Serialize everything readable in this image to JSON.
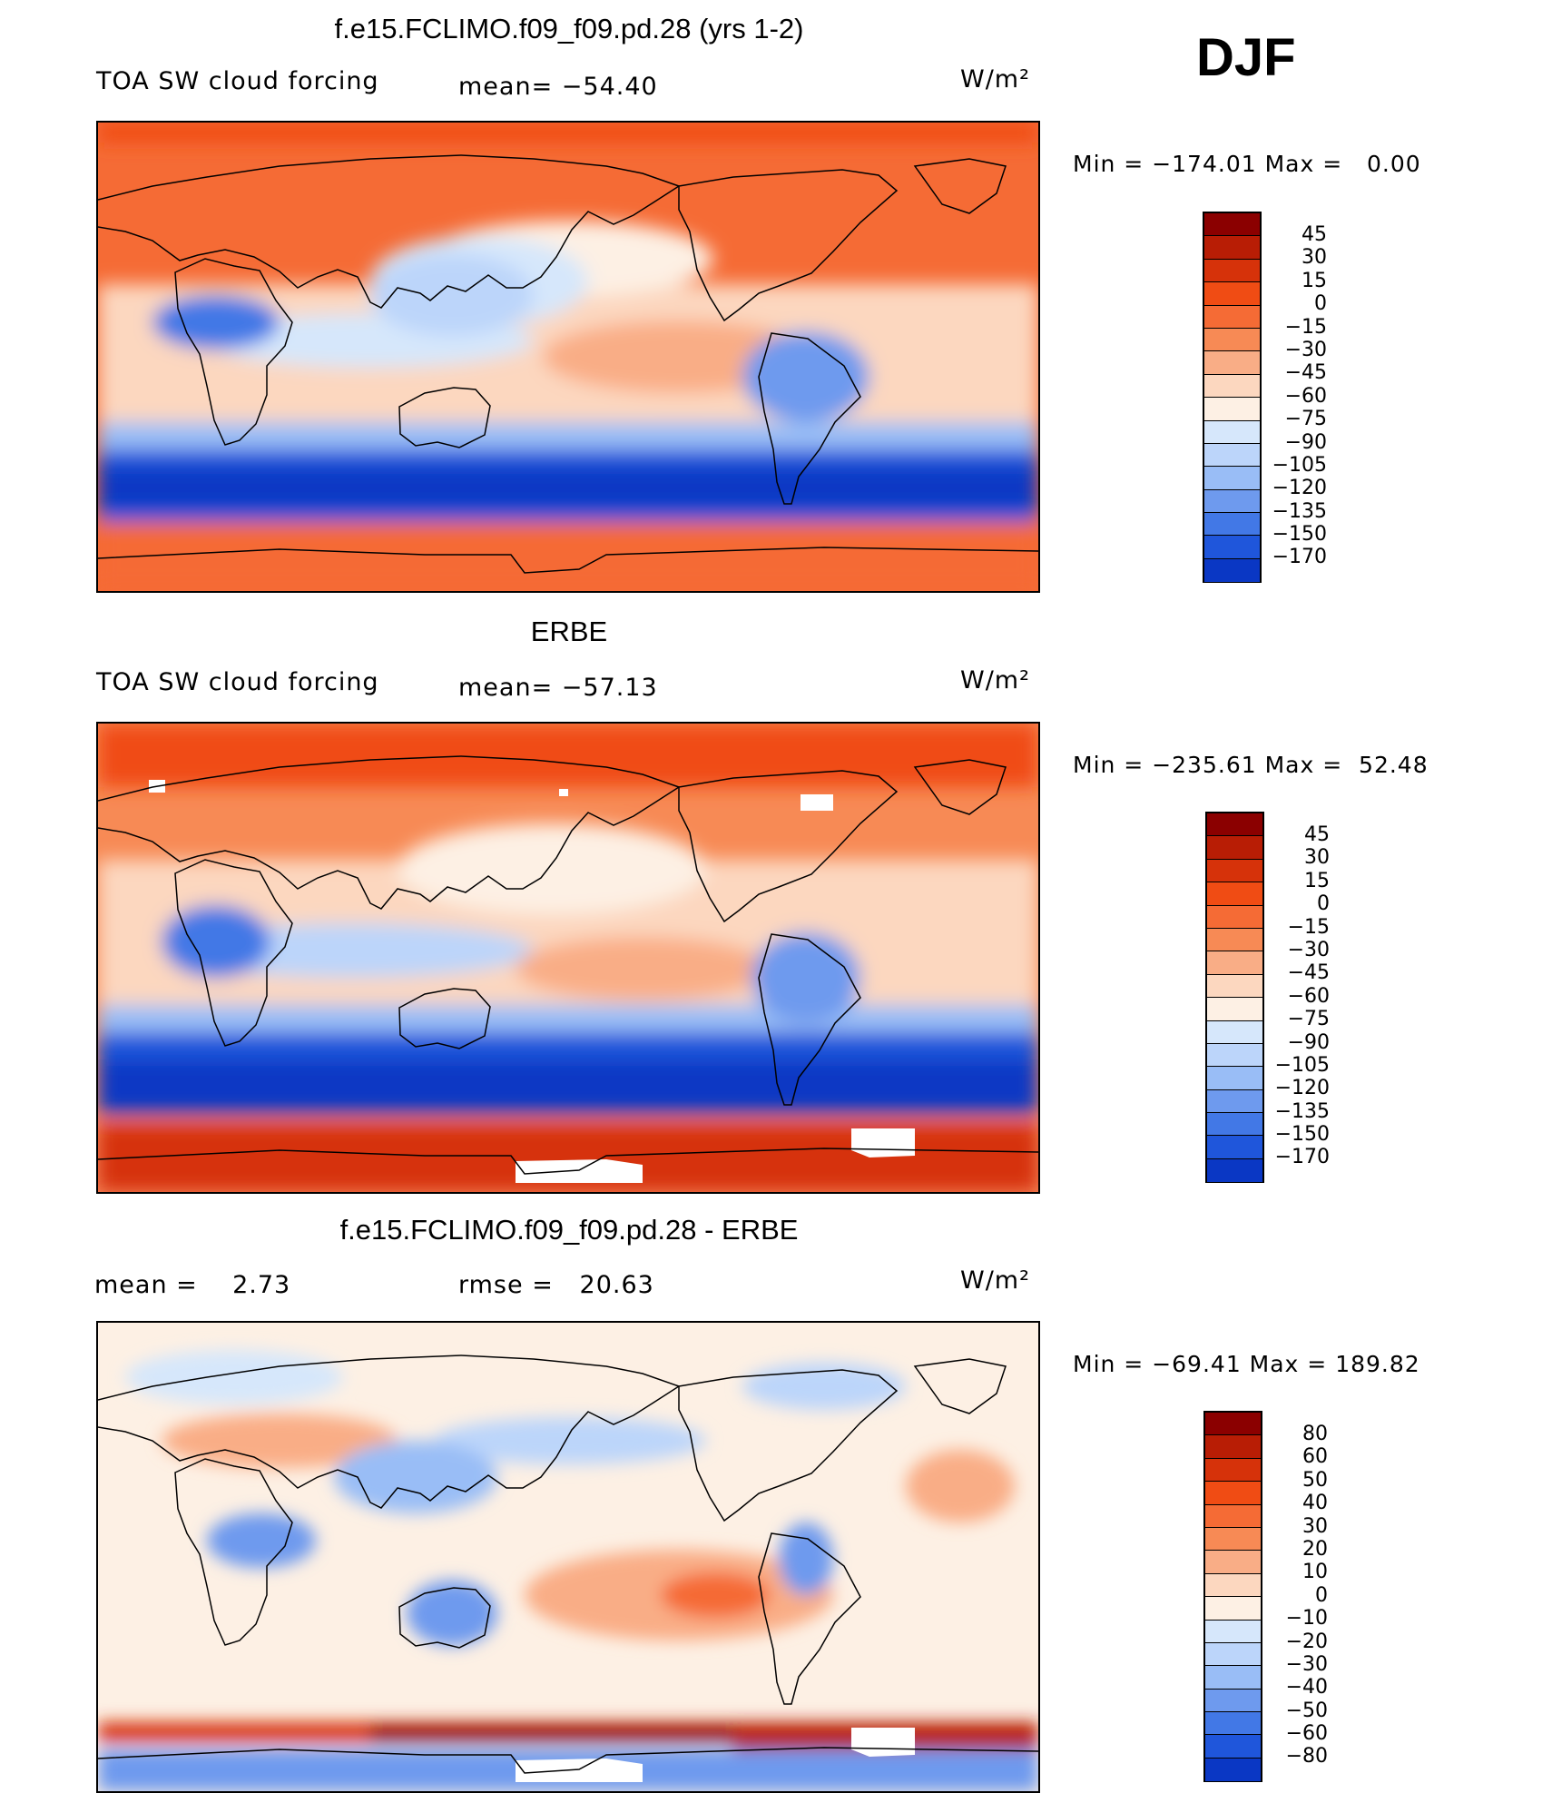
{
  "season": "DJF",
  "panels": [
    {
      "title": "f.e15.FCLIMO.f09_f09.pd.28 (yrs 1-2)",
      "left_label": "TOA SW cloud forcing",
      "center_label": "mean= −54.40",
      "units": "W/m²",
      "min_max": "Min = −174.01 Max =   0.00",
      "colorbar": {
        "labels": [
          "45",
          "30",
          "15",
          "0",
          "−15",
          "−30",
          "−45",
          "−60",
          "−75",
          "−90",
          "−105",
          "−120",
          "−135",
          "−150",
          "−170"
        ],
        "colors": [
          "#8b0000",
          "#b81d05",
          "#d6320a",
          "#f04c14",
          "#f56b35",
          "#f78a55",
          "#f9ad86",
          "#fcd7bf",
          "#fdf0e4",
          "#d6e7fb",
          "#bcd5fa",
          "#99bdf6",
          "#6e9aee",
          "#4278e6",
          "#1f56db",
          "#0a37c4",
          "#00178f"
        ]
      }
    },
    {
      "title": "ERBE",
      "left_label": "TOA SW cloud forcing",
      "center_label": "mean= −57.13",
      "units": "W/m²",
      "min_max": "Min = −235.61 Max =  52.48",
      "colorbar": {
        "labels": [
          "45",
          "30",
          "15",
          "0",
          "−15",
          "−30",
          "−45",
          "−60",
          "−75",
          "−90",
          "−105",
          "−120",
          "−135",
          "−150",
          "−170"
        ],
        "colors": [
          "#8b0000",
          "#b81d05",
          "#d6320a",
          "#f04c14",
          "#f56b35",
          "#f78a55",
          "#f9ad86",
          "#fcd7bf",
          "#fdf0e4",
          "#d6e7fb",
          "#bcd5fa",
          "#99bdf6",
          "#6e9aee",
          "#4278e6",
          "#1f56db",
          "#0a37c4",
          "#00178f"
        ]
      }
    },
    {
      "title": "f.e15.FCLIMO.f09_f09.pd.28 - ERBE",
      "left_label": "mean =    2.73",
      "center_label": "rmse =   20.63",
      "units": "W/m²",
      "min_max": "Min = −69.41 Max = 189.82",
      "colorbar": {
        "labels": [
          "80",
          "60",
          "50",
          "40",
          "30",
          "20",
          "10",
          "0",
          "−10",
          "−20",
          "−30",
          "−40",
          "−50",
          "−60",
          "−80"
        ],
        "colors": [
          "#8b0000",
          "#b81d05",
          "#d6320a",
          "#f04c14",
          "#f56b35",
          "#f78a55",
          "#f9ad86",
          "#fcd7bf",
          "#fdf0e4",
          "#d6e7fb",
          "#bcd5fa",
          "#99bdf6",
          "#6e9aee",
          "#4278e6",
          "#1f56db",
          "#0a37c4",
          "#00178f"
        ]
      }
    }
  ]
}
